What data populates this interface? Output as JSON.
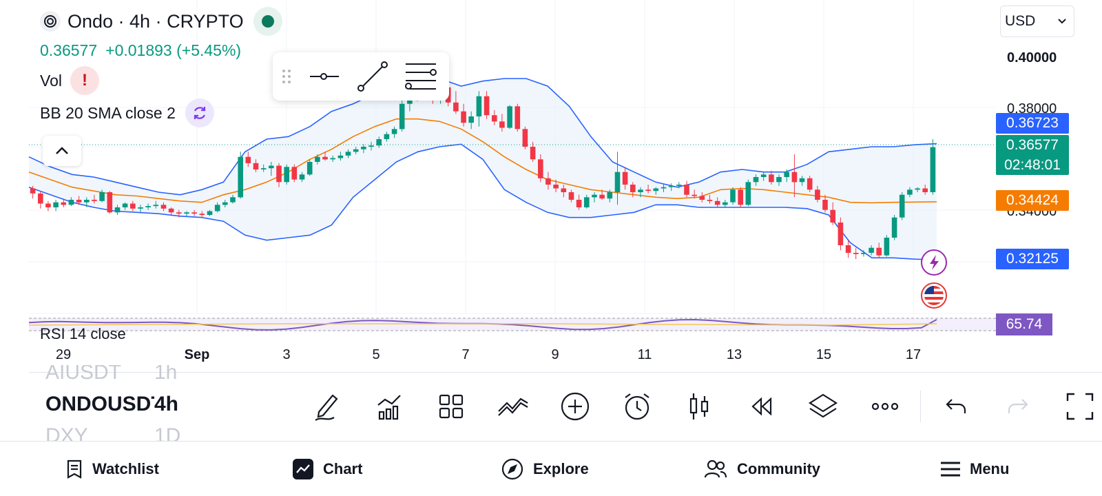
{
  "header": {
    "symbol_title": "Ondo · 4h · CRYPTO",
    "last_price": "0.36577",
    "change": "+0.01893 (+5.45%)",
    "currency": "USD"
  },
  "indicators": {
    "volume_label": "Vol",
    "volume_warning": "!",
    "bollinger_label": "BB 20 SMA close 2",
    "rsi_label": "RSI 14 close"
  },
  "drawing_toolbar": {
    "tools": [
      "horizontal-ray-icon",
      "trend-line-icon",
      "fib-levels-icon"
    ]
  },
  "price_axis": {
    "ticks": [
      "0.40000",
      "0.38000",
      "0.34000"
    ],
    "tags": {
      "bb_upper": "0.36723",
      "last_price": "0.36577",
      "countdown": "02:48:01",
      "bb_basis": "0.34424",
      "bb_lower": "0.32125",
      "rsi": "65.74"
    },
    "colors": {
      "bb_upper": "#2962ff",
      "last_price": "#089981",
      "bb_basis": "#f57c00",
      "bb_lower": "#2962ff",
      "rsi": "#7e57c2"
    }
  },
  "time_axis": [
    "29",
    "Sep",
    "3",
    "5",
    "7",
    "9",
    "11",
    "13",
    "15",
    "17"
  ],
  "chart_data": {
    "type": "candlestick",
    "interval": "4h",
    "ylim": [
      0.315,
      0.405
    ],
    "up_color": "#089981",
    "down_color": "#f23645",
    "bb_band_color": "#2962ff",
    "bb_basis_color": "#f57c00",
    "candles": [
      [
        0.3495,
        0.3505,
        0.3455,
        0.3475
      ],
      [
        0.3475,
        0.3485,
        0.3415,
        0.3435
      ],
      [
        0.3435,
        0.3445,
        0.3405,
        0.342
      ],
      [
        0.342,
        0.345,
        0.3405,
        0.344
      ],
      [
        0.344,
        0.3455,
        0.342,
        0.343
      ],
      [
        0.343,
        0.346,
        0.3425,
        0.345
      ],
      [
        0.345,
        0.3465,
        0.343,
        0.344
      ],
      [
        0.344,
        0.346,
        0.342,
        0.345
      ],
      [
        0.345,
        0.347,
        0.3435,
        0.3445
      ],
      [
        0.3445,
        0.349,
        0.344,
        0.348
      ],
      [
        0.348,
        0.3485,
        0.3395,
        0.34
      ],
      [
        0.34,
        0.343,
        0.339,
        0.342
      ],
      [
        0.342,
        0.344,
        0.341,
        0.3435
      ],
      [
        0.3435,
        0.3445,
        0.3405,
        0.3415
      ],
      [
        0.3415,
        0.343,
        0.34,
        0.342
      ],
      [
        0.342,
        0.3435,
        0.341,
        0.3425
      ],
      [
        0.3425,
        0.3445,
        0.3415,
        0.343
      ],
      [
        0.343,
        0.344,
        0.3405,
        0.3415
      ],
      [
        0.3415,
        0.342,
        0.339,
        0.34
      ],
      [
        0.34,
        0.341,
        0.338,
        0.3395
      ],
      [
        0.3395,
        0.3405,
        0.3385,
        0.34
      ],
      [
        0.34,
        0.341,
        0.3385,
        0.3395
      ],
      [
        0.3395,
        0.3405,
        0.338,
        0.339
      ],
      [
        0.339,
        0.341,
        0.3385,
        0.3405
      ],
      [
        0.3405,
        0.344,
        0.34,
        0.343
      ],
      [
        0.343,
        0.345,
        0.342,
        0.344
      ],
      [
        0.344,
        0.347,
        0.3435,
        0.346
      ],
      [
        0.346,
        0.364,
        0.3455,
        0.362
      ],
      [
        0.362,
        0.364,
        0.358,
        0.3595
      ],
      [
        0.3595,
        0.361,
        0.356,
        0.357
      ],
      [
        0.357,
        0.359,
        0.356,
        0.3575
      ],
      [
        0.3575,
        0.36,
        0.3545,
        0.3585
      ],
      [
        0.3585,
        0.3595,
        0.35,
        0.352
      ],
      [
        0.352,
        0.359,
        0.351,
        0.358
      ],
      [
        0.358,
        0.359,
        0.352,
        0.353
      ],
      [
        0.353,
        0.356,
        0.352,
        0.355
      ],
      [
        0.355,
        0.361,
        0.3545,
        0.36
      ],
      [
        0.36,
        0.363,
        0.359,
        0.362
      ],
      [
        0.362,
        0.364,
        0.3605,
        0.361
      ],
      [
        0.361,
        0.3625,
        0.36,
        0.3615
      ],
      [
        0.3615,
        0.364,
        0.3605,
        0.3625
      ],
      [
        0.3625,
        0.365,
        0.3615,
        0.364
      ],
      [
        0.364,
        0.366,
        0.363,
        0.365
      ],
      [
        0.365,
        0.367,
        0.3635,
        0.366
      ],
      [
        0.366,
        0.368,
        0.3645,
        0.3665
      ],
      [
        0.3665,
        0.37,
        0.3655,
        0.369
      ],
      [
        0.369,
        0.372,
        0.368,
        0.371
      ],
      [
        0.371,
        0.374,
        0.3695,
        0.373
      ],
      [
        0.373,
        0.385,
        0.372,
        0.383
      ],
      [
        0.383,
        0.393,
        0.38,
        0.389
      ],
      [
        0.389,
        0.392,
        0.384,
        0.3855
      ],
      [
        0.3855,
        0.3935,
        0.3845,
        0.392
      ],
      [
        0.392,
        0.3935,
        0.383,
        0.3845
      ],
      [
        0.3845,
        0.391,
        0.383,
        0.3895
      ],
      [
        0.3895,
        0.391,
        0.382,
        0.3835
      ],
      [
        0.3835,
        0.388,
        0.379,
        0.38
      ],
      [
        0.38,
        0.383,
        0.374,
        0.3755
      ],
      [
        0.3755,
        0.38,
        0.373,
        0.378
      ],
      [
        0.378,
        0.388,
        0.374,
        0.386
      ],
      [
        0.386,
        0.388,
        0.377,
        0.3785
      ],
      [
        0.3785,
        0.3805,
        0.3745,
        0.376
      ],
      [
        0.376,
        0.379,
        0.372,
        0.3735
      ],
      [
        0.3735,
        0.3825,
        0.373,
        0.382
      ],
      [
        0.382,
        0.383,
        0.372,
        0.373
      ],
      [
        0.373,
        0.374,
        0.365,
        0.366
      ],
      [
        0.366,
        0.368,
        0.36,
        0.361
      ],
      [
        0.361,
        0.363,
        0.352,
        0.3535
      ],
      [
        0.3535,
        0.356,
        0.349,
        0.351
      ],
      [
        0.351,
        0.353,
        0.348,
        0.3495
      ],
      [
        0.3495,
        0.351,
        0.346,
        0.348
      ],
      [
        0.348,
        0.349,
        0.344,
        0.345
      ],
      [
        0.345,
        0.347,
        0.341,
        0.342
      ],
      [
        0.342,
        0.347,
        0.3415,
        0.346
      ],
      [
        0.346,
        0.348,
        0.344,
        0.347
      ],
      [
        0.347,
        0.349,
        0.345,
        0.3455
      ],
      [
        0.3455,
        0.349,
        0.344,
        0.348
      ],
      [
        0.348,
        0.364,
        0.343,
        0.356
      ],
      [
        0.356,
        0.358,
        0.349,
        0.351
      ],
      [
        0.351,
        0.352,
        0.346,
        0.348
      ],
      [
        0.348,
        0.35,
        0.346,
        0.349
      ],
      [
        0.349,
        0.351,
        0.3475,
        0.3485
      ],
      [
        0.3485,
        0.35,
        0.347,
        0.3495
      ],
      [
        0.3495,
        0.351,
        0.348,
        0.35
      ],
      [
        0.35,
        0.3515,
        0.3485,
        0.3505
      ],
      [
        0.3505,
        0.352,
        0.3495,
        0.351
      ],
      [
        0.351,
        0.3525,
        0.346,
        0.347
      ],
      [
        0.347,
        0.349,
        0.3455,
        0.3465
      ],
      [
        0.3465,
        0.348,
        0.344,
        0.345
      ],
      [
        0.345,
        0.347,
        0.3435,
        0.3445
      ],
      [
        0.3445,
        0.346,
        0.342,
        0.343
      ],
      [
        0.343,
        0.345,
        0.342,
        0.344
      ],
      [
        0.344,
        0.35,
        0.343,
        0.349
      ],
      [
        0.349,
        0.35,
        0.342,
        0.343
      ],
      [
        0.343,
        0.353,
        0.3425,
        0.352
      ],
      [
        0.352,
        0.355,
        0.3505,
        0.354
      ],
      [
        0.354,
        0.356,
        0.3525,
        0.355
      ],
      [
        0.355,
        0.3565,
        0.351,
        0.352
      ],
      [
        0.352,
        0.355,
        0.3505,
        0.354
      ],
      [
        0.354,
        0.357,
        0.352,
        0.356
      ],
      [
        0.356,
        0.363,
        0.346,
        0.352
      ],
      [
        0.352,
        0.3545,
        0.3505,
        0.3535
      ],
      [
        0.3535,
        0.3545,
        0.348,
        0.349
      ],
      [
        0.349,
        0.3505,
        0.344,
        0.345
      ],
      [
        0.345,
        0.347,
        0.34,
        0.341
      ],
      [
        0.341,
        0.344,
        0.335,
        0.336
      ],
      [
        0.336,
        0.338,
        0.325,
        0.327
      ],
      [
        0.327,
        0.329,
        0.322,
        0.324
      ],
      [
        0.324,
        0.326,
        0.3215,
        0.3235
      ],
      [
        0.3235,
        0.325,
        0.3225,
        0.324
      ],
      [
        0.324,
        0.327,
        0.323,
        0.326
      ],
      [
        0.326,
        0.328,
        0.322,
        0.323
      ],
      [
        0.323,
        0.331,
        0.3225,
        0.33
      ],
      [
        0.33,
        0.339,
        0.329,
        0.338
      ],
      [
        0.338,
        0.348,
        0.337,
        0.347
      ],
      [
        0.347,
        0.35,
        0.346,
        0.349
      ],
      [
        0.349,
        0.35,
        0.348,
        0.3495
      ],
      [
        0.3495,
        0.351,
        0.347,
        0.348
      ],
      [
        0.348,
        0.369,
        0.347,
        0.3658
      ]
    ],
    "bb_upper": [
      0.362,
      0.358,
      0.355,
      0.354,
      0.352,
      0.35,
      0.348,
      0.347,
      0.349,
      0.352,
      0.364,
      0.369,
      0.37,
      0.374,
      0.38,
      0.383,
      0.387,
      0.392,
      0.394,
      0.393,
      0.39,
      0.392,
      0.393,
      0.393,
      0.39,
      0.382,
      0.37,
      0.36,
      0.356,
      0.352,
      0.35,
      0.352,
      0.356,
      0.357,
      0.356,
      0.356,
      0.359,
      0.364,
      0.365,
      0.366,
      0.366,
      0.3668,
      0.3672
    ],
    "bb_basis": [
      0.356,
      0.353,
      0.35,
      0.3485,
      0.347,
      0.3465,
      0.3455,
      0.3445,
      0.344,
      0.347,
      0.349,
      0.352,
      0.356,
      0.361,
      0.365,
      0.37,
      0.374,
      0.377,
      0.377,
      0.376,
      0.373,
      0.368,
      0.362,
      0.357,
      0.353,
      0.351,
      0.349,
      0.348,
      0.347,
      0.346,
      0.3455,
      0.346,
      0.349,
      0.3495,
      0.349,
      0.348,
      0.347,
      0.346,
      0.344,
      0.3438,
      0.344,
      0.3441,
      0.3442
    ],
    "bb_lower": [
      0.35,
      0.347,
      0.344,
      0.342,
      0.3405,
      0.34,
      0.3395,
      0.3385,
      0.338,
      0.3365,
      0.331,
      0.329,
      0.33,
      0.331,
      0.335,
      0.346,
      0.353,
      0.36,
      0.364,
      0.366,
      0.367,
      0.361,
      0.349,
      0.344,
      0.34,
      0.338,
      0.338,
      0.339,
      0.34,
      0.343,
      0.343,
      0.342,
      0.342,
      0.342,
      0.342,
      0.342,
      0.3415,
      0.339,
      0.328,
      0.322,
      0.322,
      0.3215,
      0.3212
    ],
    "rsi_last": 65.74
  },
  "bottom_toolbar": {
    "picker_rows": [
      {
        "symbol": "AIUSDT",
        "interval": "1h"
      },
      {
        "symbol": "ONDOUSDT",
        "interval": "4h"
      },
      {
        "symbol": "DXY",
        "interval": "1D"
      }
    ],
    "tools": [
      "draw-icon",
      "indicators-icon",
      "layout-grid-icon",
      "compare-icon",
      "add-icon",
      "alert-icon",
      "candle-type-icon",
      "replay-icon",
      "layers-icon",
      "more-icon",
      "undo-icon",
      "redo-icon",
      "fullscreen-icon"
    ]
  },
  "bottom_nav": {
    "watchlist": "Watchlist",
    "chart": "Chart",
    "explore": "Explore",
    "community": "Community",
    "menu": "Menu"
  }
}
